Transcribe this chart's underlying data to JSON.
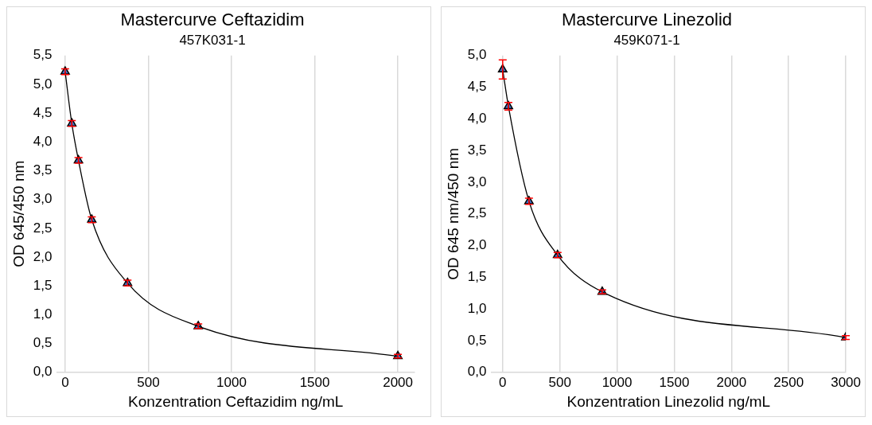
{
  "chart_data": [
    {
      "type": "scatter",
      "title": "Mastercurve Ceftazidim",
      "subtitle": "457K031-1",
      "xlabel": "Konzentration Ceftazidim ng/mL",
      "ylabel": "OD 645/450 nm",
      "grid": "x",
      "legend": false,
      "xlim": [
        -50,
        2100
      ],
      "xticks": [
        0,
        500,
        1000,
        1500,
        2000
      ],
      "ylim": [
        0,
        5.5
      ],
      "yticks": [
        {
          "value": 0,
          "label": "0,0"
        },
        {
          "value": 0.5,
          "label": "0,5"
        },
        {
          "value": 1,
          "label": "1,0"
        },
        {
          "value": 1.5,
          "label": "1,5"
        },
        {
          "value": 2,
          "label": "2,0"
        },
        {
          "value": 2.5,
          "label": "2,5"
        },
        {
          "value": 3,
          "label": "3,0"
        },
        {
          "value": 3.5,
          "label": "3,5"
        },
        {
          "value": 4,
          "label": "4,0"
        },
        {
          "value": 4.5,
          "label": "4,5"
        },
        {
          "value": 5,
          "label": "5,0"
        },
        {
          "value": 5.5,
          "label": "5,5"
        }
      ],
      "series": [
        {
          "type": "line",
          "color": "#000000",
          "x": [
            0,
            40,
            80,
            160,
            375,
            800,
            2000
          ],
          "values": [
            5.22,
            4.32,
            3.68,
            2.65,
            1.55,
            0.8,
            0.28
          ]
        },
        {
          "type": "scatter",
          "color": "#4472c4",
          "marker": "triangle",
          "x": [
            0,
            40,
            80,
            160,
            375,
            800,
            2000
          ],
          "values": [
            5.22,
            4.32,
            3.68,
            2.65,
            1.55,
            0.8,
            0.28
          ],
          "errors": [
            0.05,
            0.05,
            0.05,
            0.05,
            0.05,
            0.04,
            0.03
          ]
        }
      ]
    },
    {
      "type": "scatter",
      "title": "Mastercurve Linezolid",
      "subtitle": "459K071-1",
      "xlabel": "Konzentration Linezolid ng/mL",
      "ylabel": "OD 645 nm/450 nm",
      "grid": "x",
      "legend": false,
      "xlim": [
        -100,
        3000
      ],
      "xticks": [
        0,
        500,
        1000,
        1500,
        2000,
        2500,
        3000
      ],
      "ylim": [
        0,
        5
      ],
      "yticks": [
        {
          "value": 0,
          "label": "0,0"
        },
        {
          "value": 0.5,
          "label": "0,5"
        },
        {
          "value": 1,
          "label": "1,0"
        },
        {
          "value": 1.5,
          "label": "1,5"
        },
        {
          "value": 2,
          "label": "2,0"
        },
        {
          "value": 2.5,
          "label": "2,5"
        },
        {
          "value": 3,
          "label": "3,0"
        },
        {
          "value": 3.5,
          "label": "3,5"
        },
        {
          "value": 4,
          "label": "4,0"
        },
        {
          "value": 4.5,
          "label": "4,5"
        },
        {
          "value": 5,
          "label": "5,0"
        }
      ],
      "series": [
        {
          "type": "line",
          "color": "#000000",
          "x": [
            0,
            50,
            230,
            480,
            870,
            3000
          ],
          "values": [
            4.78,
            4.2,
            2.7,
            1.85,
            1.27,
            0.55
          ]
        },
        {
          "type": "scatter",
          "color": "#4472c4",
          "marker": "triangle",
          "x": [
            0,
            50,
            230,
            480,
            870,
            3000
          ],
          "values": [
            4.78,
            4.2,
            2.7,
            1.85,
            1.27,
            0.55
          ],
          "errors": [
            0.15,
            0.06,
            0.05,
            0.04,
            0.03,
            0.03
          ]
        }
      ]
    }
  ]
}
